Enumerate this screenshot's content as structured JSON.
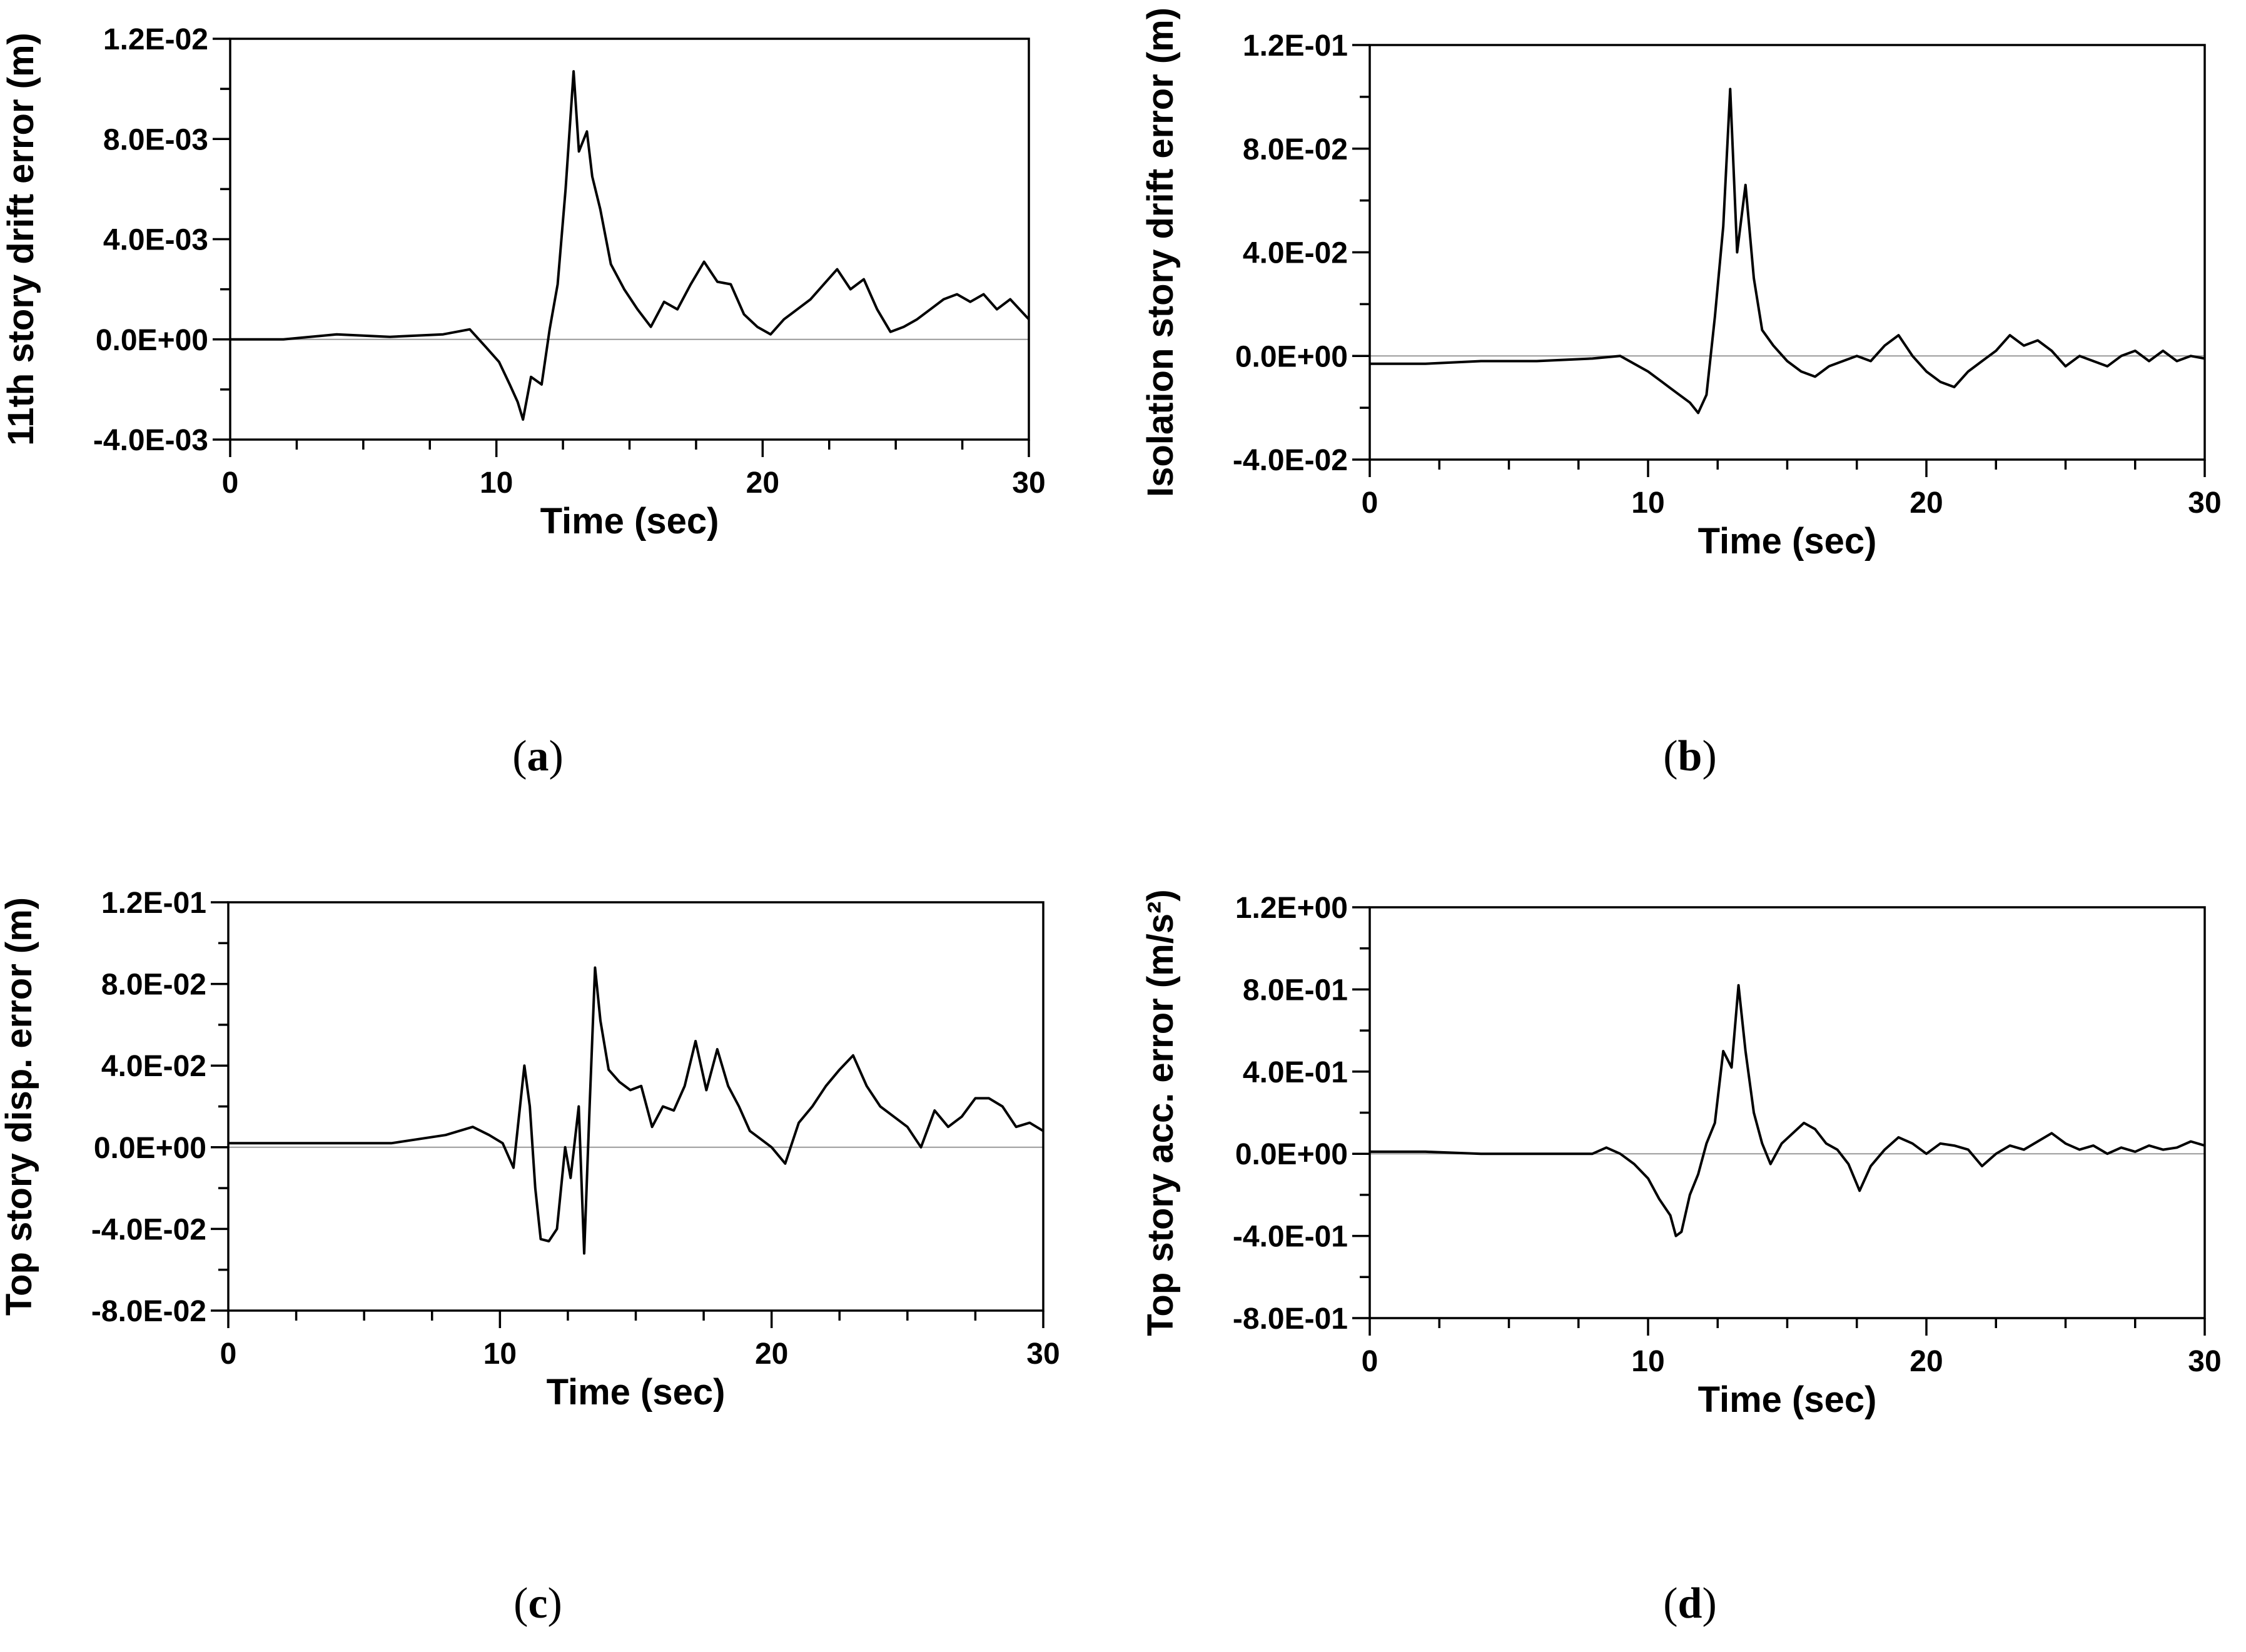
{
  "colors": {
    "line": "#000000",
    "zero_line": "#9a9a9a",
    "axis": "#000000",
    "background": "#ffffff"
  },
  "chart_data": [
    {
      "id": "a",
      "type": "line",
      "panel_label": "a",
      "xlabel": "Time (sec)",
      "ylabel": "11th story drift error (m)",
      "xlim": [
        0,
        30
      ],
      "ylim": [
        -0.004,
        0.012
      ],
      "x_ticks": [
        0,
        10,
        20,
        30
      ],
      "x_tick_labels": [
        "0",
        "10",
        "20",
        "30"
      ],
      "y_ticks": [
        -0.004,
        0.0,
        0.004,
        0.008,
        0.012
      ],
      "y_tick_labels": [
        "-4.0E-03",
        "0.0E+00",
        "4.0E-03",
        "8.0E-03",
        "1.2E-02"
      ],
      "zero_line": true,
      "series": [
        {
          "name": "error",
          "x": [
            0,
            2,
            4,
            6,
            8,
            9,
            9.6,
            10.1,
            10.5,
            10.8,
            11.0,
            11.3,
            11.7,
            12.0,
            12.3,
            12.6,
            12.9,
            13.1,
            13.4,
            13.6,
            13.9,
            14.3,
            14.8,
            15.3,
            15.8,
            16.3,
            16.8,
            17.3,
            17.8,
            18.3,
            18.8,
            19.3,
            19.8,
            20.3,
            20.8,
            21.3,
            21.8,
            22.3,
            22.8,
            23.3,
            23.8,
            24.3,
            24.8,
            25.3,
            25.8,
            26.3,
            26.8,
            27.3,
            27.8,
            28.3,
            28.8,
            29.3,
            30
          ],
          "values": [
            0.0,
            0.0,
            0.0002,
            0.0001,
            0.0002,
            0.0004,
            -0.0003,
            -0.0009,
            -0.0018,
            -0.0025,
            -0.0032,
            -0.0015,
            -0.0018,
            0.0004,
            0.0022,
            0.006,
            0.0107,
            0.0075,
            0.0083,
            0.0065,
            0.0052,
            0.003,
            0.002,
            0.0012,
            0.0005,
            0.0015,
            0.0012,
            0.0022,
            0.0031,
            0.0023,
            0.0022,
            0.001,
            0.0005,
            0.0002,
            0.0008,
            0.0012,
            0.0016,
            0.0022,
            0.0028,
            0.002,
            0.0024,
            0.0012,
            0.0003,
            0.0005,
            0.0008,
            0.0012,
            0.0016,
            0.0018,
            0.0015,
            0.0018,
            0.0012,
            0.0016,
            0.0008
          ]
        }
      ]
    },
    {
      "id": "b",
      "type": "line",
      "panel_label": "b",
      "xlabel": "Time (sec)",
      "ylabel": "Isolation story drift error (m)",
      "xlim": [
        0,
        30
      ],
      "ylim": [
        -0.04,
        0.12
      ],
      "x_ticks": [
        0,
        10,
        20,
        30
      ],
      "x_tick_labels": [
        "0",
        "10",
        "20",
        "30"
      ],
      "y_ticks": [
        -0.04,
        0.0,
        0.04,
        0.08,
        0.12
      ],
      "y_tick_labels": [
        "-4.0E-02",
        "0.0E+00",
        "4.0E-02",
        "8.0E-02",
        "1.2E-01"
      ],
      "zero_line": true,
      "series": [
        {
          "name": "error",
          "x": [
            0,
            2,
            4,
            6,
            8,
            9,
            9.5,
            10,
            10.5,
            11,
            11.5,
            11.8,
            12.1,
            12.4,
            12.7,
            12.95,
            13.2,
            13.5,
            13.8,
            14.1,
            14.5,
            15,
            15.5,
            16,
            16.5,
            17,
            17.5,
            18,
            18.5,
            19,
            19.5,
            20,
            20.5,
            21,
            21.5,
            22,
            22.5,
            23,
            23.5,
            24,
            24.5,
            25,
            25.5,
            26,
            26.5,
            27,
            27.5,
            28,
            28.5,
            29,
            29.5,
            30
          ],
          "values": [
            -0.003,
            -0.003,
            -0.002,
            -0.002,
            -0.001,
            0.0,
            -0.003,
            -0.006,
            -0.01,
            -0.014,
            -0.018,
            -0.022,
            -0.015,
            0.015,
            0.05,
            0.103,
            0.04,
            0.066,
            0.03,
            0.01,
            0.004,
            -0.002,
            -0.006,
            -0.008,
            -0.004,
            -0.002,
            0.0,
            -0.002,
            0.004,
            0.008,
            0.0,
            -0.006,
            -0.01,
            -0.012,
            -0.006,
            -0.002,
            0.002,
            0.008,
            0.004,
            0.006,
            0.002,
            -0.004,
            0.0,
            -0.002,
            -0.004,
            0.0,
            0.002,
            -0.002,
            0.002,
            -0.002,
            0.0,
            -0.001
          ]
        }
      ]
    },
    {
      "id": "c",
      "type": "line",
      "panel_label": "c",
      "xlabel": "Time (sec)",
      "ylabel": "Top story disp. error (m)",
      "xlim": [
        0,
        30
      ],
      "ylim": [
        -0.08,
        0.12
      ],
      "x_ticks": [
        0,
        10,
        20,
        30
      ],
      "x_tick_labels": [
        "0",
        "10",
        "20",
        "30"
      ],
      "y_ticks": [
        -0.08,
        -0.04,
        0.0,
        0.04,
        0.08,
        0.12
      ],
      "y_tick_labels": [
        "-8.0E-02",
        "-4.0E-02",
        "0.0E+00",
        "4.0E-02",
        "8.0E-02",
        "1.2E-01"
      ],
      "zero_line": true,
      "series": [
        {
          "name": "error",
          "x": [
            0,
            2,
            4,
            6,
            8,
            9,
            9.6,
            10.1,
            10.5,
            10.9,
            11.1,
            11.3,
            11.5,
            11.8,
            12.1,
            12.4,
            12.6,
            12.9,
            13.1,
            13.3,
            13.5,
            13.7,
            14.0,
            14.4,
            14.8,
            15.2,
            15.6,
            16.0,
            16.4,
            16.8,
            17.2,
            17.6,
            18.0,
            18.4,
            18.8,
            19.2,
            19.6,
            20.0,
            20.5,
            21.0,
            21.5,
            22.0,
            22.5,
            23.0,
            23.5,
            24.0,
            24.5,
            25.0,
            25.5,
            26.0,
            26.5,
            27.0,
            27.5,
            28.0,
            28.5,
            29.0,
            29.5,
            30
          ],
          "values": [
            0.002,
            0.002,
            0.002,
            0.002,
            0.006,
            0.01,
            0.006,
            0.002,
            -0.01,
            0.04,
            0.02,
            -0.02,
            -0.045,
            -0.046,
            -0.04,
            0.0,
            -0.015,
            0.02,
            -0.052,
            0.02,
            0.088,
            0.062,
            0.038,
            0.032,
            0.028,
            0.03,
            0.01,
            0.02,
            0.018,
            0.03,
            0.052,
            0.028,
            0.048,
            0.03,
            0.02,
            0.008,
            0.004,
            0.0,
            -0.008,
            0.012,
            0.02,
            0.03,
            0.038,
            0.045,
            0.03,
            0.02,
            0.015,
            0.01,
            0.0,
            0.018,
            0.01,
            0.015,
            0.024,
            0.024,
            0.02,
            0.01,
            0.012,
            0.008
          ]
        }
      ]
    },
    {
      "id": "d",
      "type": "line",
      "panel_label": "d",
      "xlabel": "Time (sec)",
      "ylabel": "Top story acc. error (m/s²)",
      "xlim": [
        0,
        30
      ],
      "ylim": [
        -0.8,
        1.2
      ],
      "x_ticks": [
        0,
        10,
        20,
        30
      ],
      "x_tick_labels": [
        "0",
        "10",
        "20",
        "30"
      ],
      "y_ticks": [
        -0.8,
        -0.4,
        0.0,
        0.4,
        0.8,
        1.2
      ],
      "y_tick_labels": [
        "-8.0E-01",
        "-4.0E-01",
        "0.0E+00",
        "4.0E-01",
        "8.0E-01",
        "1.2E+00"
      ],
      "zero_line": true,
      "series": [
        {
          "name": "error",
          "x": [
            0,
            2,
            4,
            6,
            8,
            8.5,
            9,
            9.5,
            10,
            10.4,
            10.8,
            11.0,
            11.2,
            11.5,
            11.8,
            12.1,
            12.4,
            12.7,
            13.0,
            13.25,
            13.5,
            13.8,
            14.1,
            14.4,
            14.8,
            15.2,
            15.6,
            16.0,
            16.4,
            16.8,
            17.2,
            17.6,
            18.0,
            18.5,
            19.0,
            19.5,
            20.0,
            20.5,
            21.0,
            21.5,
            22.0,
            22.5,
            23.0,
            23.5,
            24.0,
            24.5,
            25.0,
            25.5,
            26.0,
            26.5,
            27.0,
            27.5,
            28.0,
            28.5,
            29.0,
            29.5,
            30
          ],
          "values": [
            0.01,
            0.01,
            0.0,
            0.0,
            0.0,
            0.03,
            0.0,
            -0.05,
            -0.12,
            -0.22,
            -0.3,
            -0.4,
            -0.38,
            -0.2,
            -0.1,
            0.05,
            0.15,
            0.5,
            0.42,
            0.82,
            0.5,
            0.2,
            0.05,
            -0.05,
            0.05,
            0.1,
            0.15,
            0.12,
            0.05,
            0.02,
            -0.05,
            -0.18,
            -0.06,
            0.02,
            0.08,
            0.05,
            0.0,
            0.05,
            0.04,
            0.02,
            -0.06,
            0.0,
            0.04,
            0.02,
            0.06,
            0.1,
            0.05,
            0.02,
            0.04,
            0.0,
            0.03,
            0.01,
            0.04,
            0.02,
            0.03,
            0.06,
            0.04
          ]
        }
      ]
    }
  ]
}
